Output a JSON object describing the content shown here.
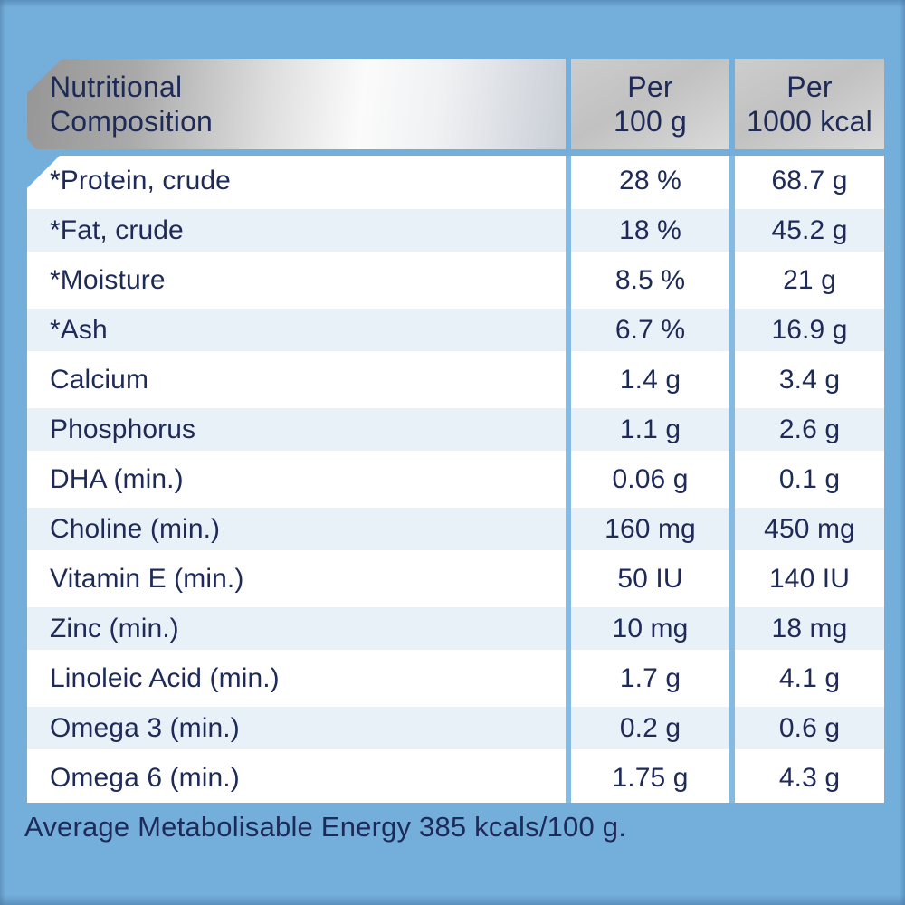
{
  "page": {
    "background_color": "#74AEDB",
    "text_color": "#1E2A58",
    "row_alt_color": "#E9F1F8",
    "divider_color": "#85BAE3",
    "header_metal_dark": "#969696",
    "header_metal_light": "#FBFBFB"
  },
  "table": {
    "header": {
      "title": "Nutritional\nComposition",
      "col_per_100g": "Per\n100 g",
      "col_per_1000kcal": "Per\n1000 kcal"
    },
    "rows": [
      {
        "label": "*Protein, crude",
        "per_100g": "28 %",
        "per_1000kcal": "68.7 g"
      },
      {
        "label": "*Fat, crude",
        "per_100g": "18 %",
        "per_1000kcal": "45.2 g"
      },
      {
        "label": "*Moisture",
        "per_100g": "8.5 %",
        "per_1000kcal": "21 g"
      },
      {
        "label": "*Ash",
        "per_100g": "6.7 %",
        "per_1000kcal": "16.9 g"
      },
      {
        "label": "Calcium",
        "per_100g": "1.4 g",
        "per_1000kcal": "3.4 g"
      },
      {
        "label": "Phosphorus",
        "per_100g": "1.1 g",
        "per_1000kcal": "2.6 g"
      },
      {
        "label": "DHA (min.)",
        "per_100g": "0.06 g",
        "per_1000kcal": "0.1 g"
      },
      {
        "label": "Choline (min.)",
        "per_100g": "160 mg",
        "per_1000kcal": "450 mg"
      },
      {
        "label": "Vitamin E (min.)",
        "per_100g": "50 IU",
        "per_1000kcal": "140 IU"
      },
      {
        "label": "Zinc (min.)",
        "per_100g": "10 mg",
        "per_1000kcal": "18 mg"
      },
      {
        "label": "Linoleic Acid (min.)",
        "per_100g": "1.7 g",
        "per_1000kcal": "4.1 g"
      },
      {
        "label": "Omega 3 (min.)",
        "per_100g": "0.2 g",
        "per_1000kcal": "0.6 g"
      },
      {
        "label": "Omega 6 (min.)",
        "per_100g": "1.75 g",
        "per_1000kcal": "4.3 g"
      }
    ],
    "footer": "Average Metabolisable Energy 385 kcals/100 g."
  }
}
